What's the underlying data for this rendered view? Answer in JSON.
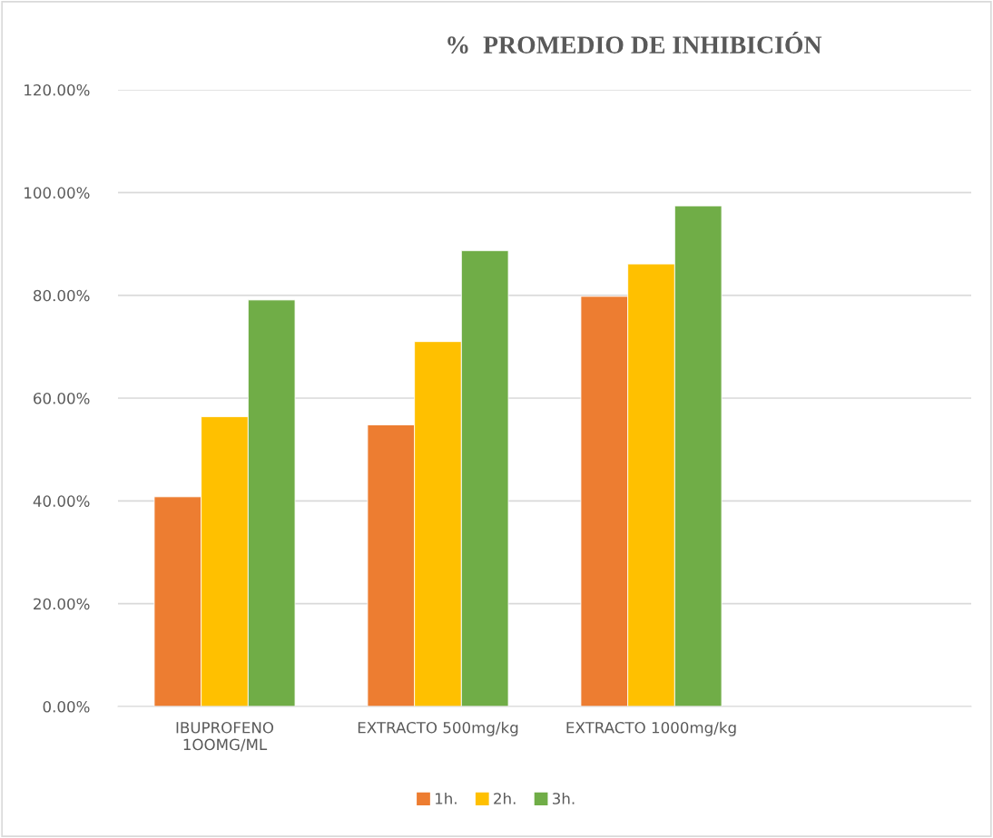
{
  "chart_data": {
    "type": "bar",
    "title": "%  PROMEDIO DE INHIBICIÓN",
    "categories": [
      "IBUPROFENO\n1OOMG/ML",
      "EXTRACTO 500mg/kg",
      "EXTRACTO 1000mg/kg",
      null
    ],
    "series": [
      {
        "name": "1h.",
        "color": "#ed7d31",
        "values": [
          40.8,
          54.8,
          79.8,
          null
        ]
      },
      {
        "name": "2h.",
        "color": "#ffc000",
        "values": [
          56.4,
          71.0,
          86.1,
          null
        ]
      },
      {
        "name": "3h.",
        "color": "#70ad47",
        "values": [
          79.1,
          88.7,
          97.4,
          null
        ]
      }
    ],
    "ylim": [
      0,
      120
    ],
    "yticks": [
      {
        "value": 0,
        "label": "0.00%"
      },
      {
        "value": 20,
        "label": "20.00%"
      },
      {
        "value": 40,
        "label": "40.00%"
      },
      {
        "value": 60,
        "label": "60.00%"
      },
      {
        "value": 80,
        "label": "80.00%"
      },
      {
        "value": 100,
        "label": "100.00%"
      },
      {
        "value": 120,
        "label": "120.00%"
      }
    ],
    "grid": "y",
    "legend": "bottom"
  }
}
